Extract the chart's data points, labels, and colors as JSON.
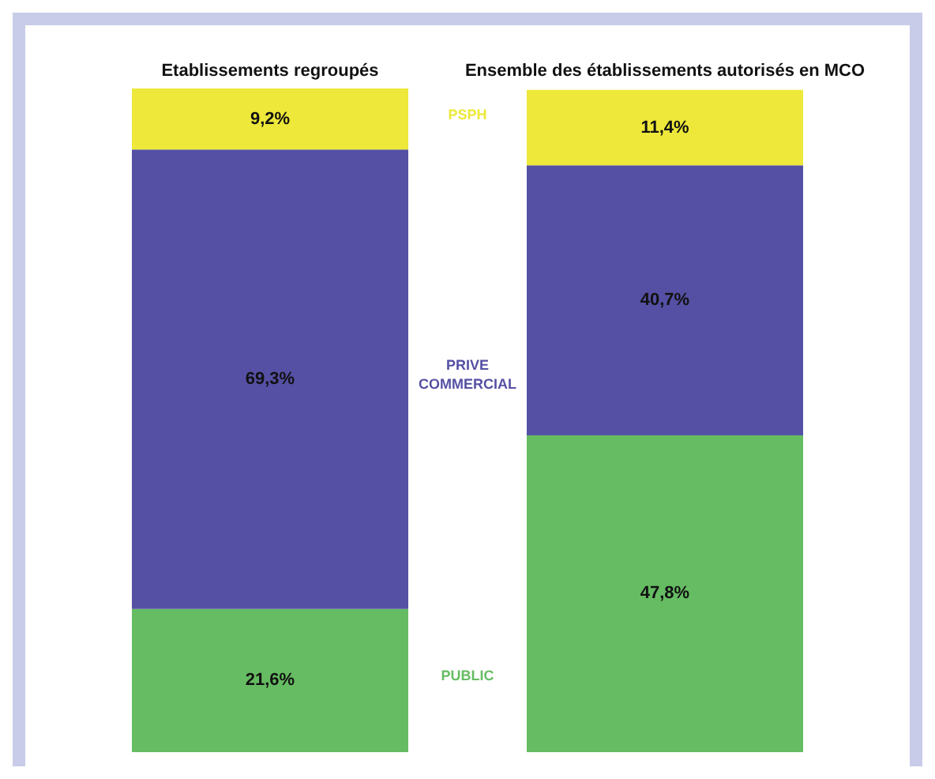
{
  "chart_data": {
    "type": "bar",
    "stacked": true,
    "categories": [
      "Etablissements regroupés",
      "Ensemble des établissements autorisés en MCO"
    ],
    "series": [
      {
        "name": "PUBLIC",
        "color": "#66bc62",
        "values": [
          21.6,
          47.8
        ],
        "value_labels": [
          "21,6%",
          "47,8%"
        ]
      },
      {
        "name": "PRIVE COMMERCIAL",
        "color": "#5550a4",
        "values": [
          69.3,
          40.7
        ],
        "value_labels": [
          "69,3%",
          "40,7%"
        ]
      },
      {
        "name": "PSPH",
        "color": "#ede83a",
        "values": [
          9.2,
          11.4
        ],
        "value_labels": [
          "9,2%",
          "11,4%"
        ]
      }
    ],
    "legend": false
  }
}
